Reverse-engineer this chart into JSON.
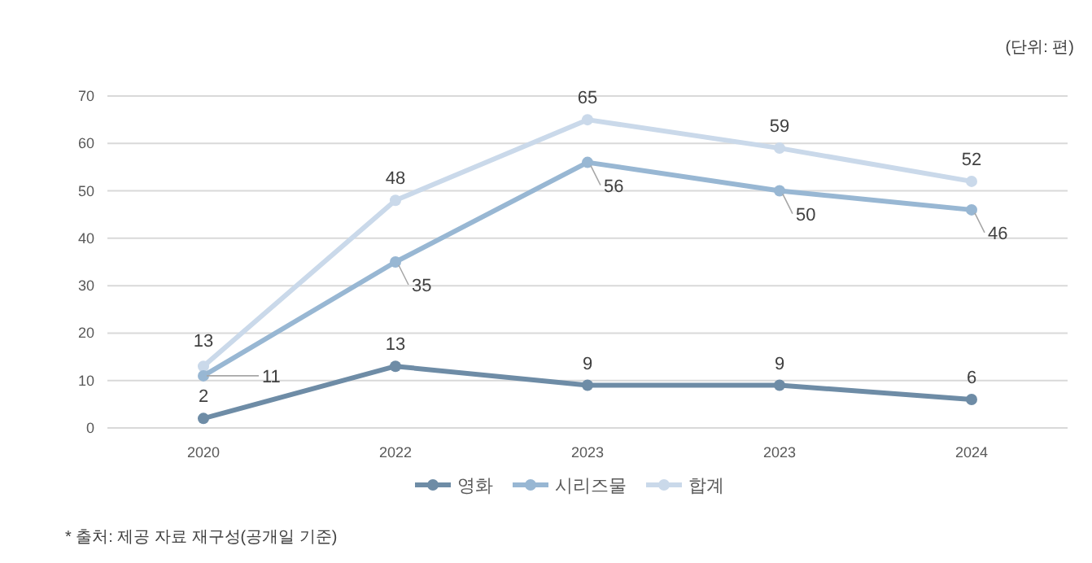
{
  "chart_data": {
    "type": "line",
    "categories": [
      "2020",
      "2022",
      "2023",
      "2023",
      "2024"
    ],
    "series": [
      {
        "name": "영화",
        "color": "#6e8ca6",
        "values": [
          2,
          13,
          9,
          9,
          6
        ]
      },
      {
        "name": "시리즈물",
        "color": "#98b7d3",
        "values": [
          11,
          35,
          56,
          50,
          46
        ]
      },
      {
        "name": "합계",
        "color": "#cad9ea",
        "values": [
          13,
          48,
          65,
          59,
          52
        ]
      }
    ],
    "ylim": [
      0,
      70
    ],
    "yticks": [
      0,
      10,
      20,
      30,
      40,
      50,
      60,
      70
    ],
    "grid": "y",
    "legend": "bottom",
    "marker": "circle",
    "line_style": "solid",
    "data_labels": true,
    "annotations": [
      "(단위: 편)",
      "* 출처: 제공 자료 재구성(공개일 기준)"
    ]
  }
}
